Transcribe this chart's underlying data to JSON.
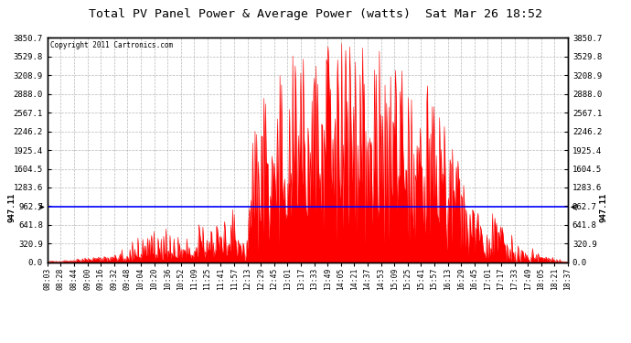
{
  "title": "Total PV Panel Power & Average Power (watts)  Sat Mar 26 18:52",
  "copyright": "Copyright 2011 Cartronics.com",
  "y_max": 3850.7,
  "y_min": 0.0,
  "y_ticks": [
    0.0,
    320.9,
    641.8,
    962.7,
    1283.6,
    1604.5,
    1925.4,
    2246.2,
    2567.1,
    2888.0,
    3208.9,
    3529.8,
    3850.7
  ],
  "average_line": 947.11,
  "average_label": "947.11",
  "x_tick_labels": [
    "08:03",
    "08:28",
    "08:44",
    "09:00",
    "09:16",
    "09:32",
    "09:48",
    "10:04",
    "10:20",
    "10:36",
    "10:52",
    "11:09",
    "11:25",
    "11:41",
    "11:57",
    "12:13",
    "12:29",
    "12:45",
    "13:01",
    "13:17",
    "13:33",
    "13:49",
    "14:05",
    "14:21",
    "14:37",
    "14:53",
    "15:09",
    "15:25",
    "15:41",
    "15:57",
    "16:13",
    "16:29",
    "16:45",
    "17:01",
    "17:17",
    "17:33",
    "17:49",
    "18:05",
    "18:21",
    "18:37"
  ],
  "background_color": "#ffffff",
  "plot_bg_color": "#ffffff",
  "grid_color": "#b0b0b0",
  "fill_color": "#ff0000",
  "line_color": "#ff0000",
  "avg_line_color": "#0000ff",
  "border_color": "#000000",
  "title_color": "#000000"
}
